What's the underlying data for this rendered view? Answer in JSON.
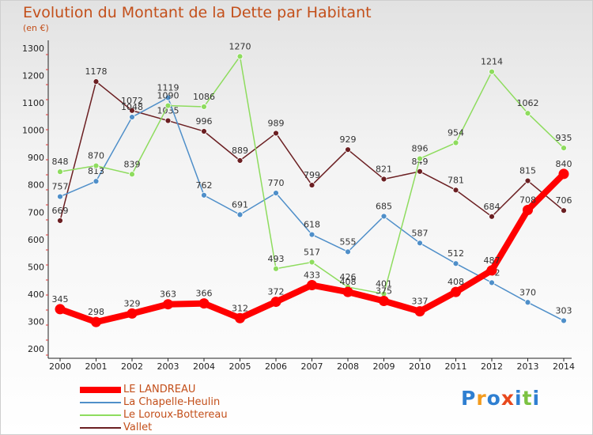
{
  "chart_data": {
    "type": "line",
    "title": "Evolution du Montant de la Dette par Habitant",
    "unit_label": "(en €)",
    "x": [
      "2000",
      "2001",
      "2002",
      "2003",
      "2004",
      "2005",
      "2006",
      "2007",
      "2008",
      "2009",
      "2010",
      "2011",
      "2012",
      "2013",
      "2014"
    ],
    "ylim": [
      200,
      1300
    ],
    "yticks": [
      200,
      300,
      400,
      500,
      600,
      700,
      800,
      900,
      1000,
      1100,
      1200,
      1300
    ],
    "grid": false,
    "legend_placement": "bottom-left",
    "series": [
      {
        "name": "LE LANDREAU",
        "color": "#ff0000",
        "values": [
          345,
          298,
          329,
          363,
          366,
          312,
          372,
          433,
          408,
          375,
          337,
          408,
          487,
          708,
          840
        ]
      },
      {
        "name": "La Chapelle-Heulin",
        "color": "#4f8fc9",
        "values": [
          757,
          813,
          1048,
          1119,
          762,
          691,
          770,
          618,
          555,
          685,
          587,
          512,
          442,
          370,
          303
        ]
      },
      {
        "name": "Le Loroux-Bottereau",
        "color": "#8edc5e",
        "values": [
          848,
          870,
          839,
          1090,
          1086,
          1270,
          493,
          517,
          426,
          401,
          896,
          954,
          1214,
          1062,
          935
        ]
      },
      {
        "name": "Vallet",
        "color": "#6b1f22",
        "values": [
          669,
          1178,
          1072,
          1035,
          996,
          889,
          989,
          799,
          929,
          821,
          849,
          781,
          684,
          815,
          706
        ]
      }
    ]
  },
  "branding": {
    "logo_letters": [
      "P",
      "r",
      "o",
      "x",
      "i",
      "t",
      "i"
    ],
    "logo_colors": [
      "#2f7fd1",
      "#f39b1e",
      "#2f7fd1",
      "#e8481c",
      "#2f7fd1",
      "#7cc242",
      "#2f7fd1"
    ]
  }
}
